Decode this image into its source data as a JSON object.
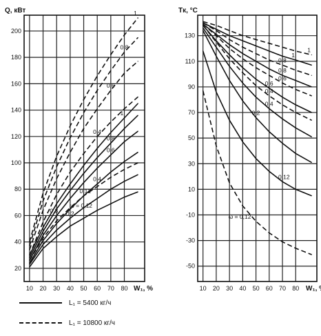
{
  "chart_data": [
    {
      "type": "line",
      "ylabel": "Q, кВт",
      "xlabel": "W₁, %",
      "x_ticks": [
        "10",
        "20",
        "30",
        "40",
        "50",
        "60",
        "70",
        "80"
      ],
      "y_ticks": [
        "20",
        "40",
        "60",
        "80",
        "100",
        "120",
        "140",
        "160",
        "180",
        "200"
      ],
      "xlim": [
        6,
        95
      ],
      "ylim": [
        10,
        212
      ],
      "grid": true,
      "series": [
        {
          "name": "1",
          "style": "dashed",
          "x": [
            10,
            20,
            30,
            40,
            50,
            60,
            70,
            80,
            90
          ],
          "y": [
            40,
            77,
            105,
            128,
            148,
            166,
            182,
            197,
            210
          ],
          "label": "1"
        },
        {
          "name": "0,8",
          "style": "dashed",
          "x": [
            10,
            20,
            30,
            40,
            50,
            60,
            70,
            80,
            90
          ],
          "y": [
            37,
            71,
            97,
            119,
            138,
            155,
            170,
            184,
            195
          ],
          "label": "0,8"
        },
        {
          "name": "0,6",
          "style": "dashed",
          "x": [
            10,
            20,
            30,
            40,
            50,
            60,
            70,
            80,
            90
          ],
          "y": [
            34,
            64,
            88,
            108,
            126,
            141,
            155,
            168,
            177
          ],
          "label": "0,6"
        },
        {
          "name": "0,4",
          "style": "dashed",
          "x": [
            10,
            20,
            30,
            40,
            50,
            60,
            70,
            80,
            90
          ],
          "y": [
            30,
            55,
            76,
            93,
            107,
            120,
            131,
            141,
            150
          ],
          "label": "0,4"
        },
        {
          "name": "0,12",
          "style": "dashed",
          "x": [
            10,
            20,
            30,
            40,
            50,
            60,
            70,
            80,
            90
          ],
          "y": [
            26,
            43,
            56,
            66,
            75,
            82,
            89,
            95,
            100
          ],
          "label": "0,12"
        },
        {
          "name": "1",
          "style": "solid",
          "x": [
            10,
            20,
            30,
            40,
            50,
            60,
            70,
            80,
            90
          ],
          "y": [
            30,
            51,
            69,
            84,
            98,
            111,
            123,
            134,
            145
          ],
          "label": "1"
        },
        {
          "name": "0,8",
          "style": "solid",
          "x": [
            10,
            20,
            30,
            40,
            50,
            60,
            70,
            80,
            90
          ],
          "y": [
            28,
            48,
            65,
            79,
            92,
            104,
            115,
            126,
            136
          ],
          "label": "0,8"
        },
        {
          "name": "0,6",
          "style": "solid",
          "x": [
            10,
            20,
            30,
            40,
            50,
            60,
            70,
            80,
            90
          ],
          "y": [
            26,
            45,
            60,
            73,
            85,
            96,
            106,
            116,
            124
          ],
          "label": "0,6"
        },
        {
          "name": "0,4",
          "style": "solid",
          "x": [
            10,
            20,
            30,
            40,
            50,
            60,
            70,
            80,
            90
          ],
          "y": [
            24,
            41,
            54,
            65,
            75,
            84,
            93,
            101,
            108
          ],
          "label": "0,4"
        },
        {
          "name": "0,2",
          "style": "solid",
          "x": [
            10,
            20,
            30,
            40,
            50,
            60,
            70,
            80,
            90
          ],
          "y": [
            23,
            38,
            49,
            58,
            66,
            73,
            80,
            86,
            91
          ],
          "label": "0,2"
        },
        {
          "name": "0,12",
          "style": "solid",
          "x": [
            10,
            20,
            30,
            40,
            50,
            60,
            70,
            80,
            90
          ],
          "y": [
            21,
            35,
            44,
            52,
            58,
            64,
            69,
            74,
            78
          ],
          "label": "ω = 0,12"
        }
      ],
      "annotations": [
        "0,3"
      ]
    },
    {
      "type": "line",
      "ylabel": "Tк, °C",
      "xlabel": "W₁, %",
      "x_ticks": [
        "10",
        "20",
        "30",
        "40",
        "50",
        "60",
        "70",
        "80"
      ],
      "y_ticks": [
        "-50",
        "-30",
        "-10",
        "10",
        "30",
        "50",
        "70",
        "90",
        "110",
        "130"
      ],
      "xlim": [
        6,
        96
      ],
      "ylim": [
        -62,
        146
      ],
      "grid": true,
      "series": [
        {
          "name": "1",
          "style": "dashed",
          "x": [
            10,
            20,
            30,
            40,
            50,
            60,
            70,
            80,
            92
          ],
          "y": [
            141,
            138,
            134,
            130,
            127,
            124,
            121,
            118,
            115
          ],
          "label": "1"
        },
        {
          "name": "0,8",
          "style": "dashed",
          "x": [
            10,
            20,
            30,
            40,
            50,
            60,
            70,
            80,
            92
          ],
          "y": [
            140,
            134,
            127,
            121,
            116,
            111,
            107,
            103,
            99
          ],
          "label": "0,8"
        },
        {
          "name": "0,6",
          "style": "dashed",
          "x": [
            10,
            20,
            30,
            40,
            50,
            60,
            70,
            80,
            92
          ],
          "y": [
            139,
            130,
            120,
            112,
            105,
            99,
            93,
            88,
            83
          ],
          "label": "0,6"
        },
        {
          "name": "0,4",
          "style": "dashed",
          "x": [
            10,
            20,
            30,
            40,
            50,
            60,
            70,
            80,
            92
          ],
          "y": [
            138,
            125,
            112,
            101,
            91,
            83,
            76,
            70,
            64
          ],
          "label": "0,4"
        },
        {
          "name": "0,12",
          "style": "dashed",
          "x": [
            10,
            20,
            30,
            40,
            50,
            60,
            70,
            80,
            92
          ],
          "y": [
            87,
            44,
            15,
            -3,
            -15,
            -24,
            -31,
            -36,
            -41
          ],
          "label": "ω = 0,12"
        },
        {
          "name": "1",
          "style": "solid",
          "x": [
            10,
            20,
            30,
            40,
            50,
            60,
            70,
            80,
            92
          ],
          "y": [
            140,
            135,
            130,
            126,
            122,
            118,
            114,
            111,
            107
          ],
          "label": "1"
        },
        {
          "name": "0,8",
          "style": "solid",
          "x": [
            10,
            20,
            30,
            40,
            50,
            60,
            70,
            80,
            92
          ],
          "y": [
            139,
            131,
            123,
            116,
            110,
            104,
            99,
            95,
            90
          ],
          "label": "0,8"
        },
        {
          "name": "0,6",
          "style": "solid",
          "x": [
            10,
            20,
            30,
            40,
            50,
            60,
            70,
            80,
            92
          ],
          "y": [
            138,
            126,
            115,
            105,
            96,
            89,
            82,
            76,
            70
          ],
          "label": "0,6"
        },
        {
          "name": "0,4",
          "style": "solid",
          "x": [
            10,
            20,
            30,
            40,
            50,
            60,
            70,
            80,
            92
          ],
          "y": [
            136,
            121,
            106,
            93,
            82,
            73,
            65,
            58,
            51
          ],
          "label": "0,4"
        },
        {
          "name": "0,2",
          "style": "solid",
          "x": [
            10,
            20,
            30,
            40,
            50,
            60,
            70,
            80,
            92
          ],
          "y": [
            134,
            114,
            95,
            79,
            66,
            55,
            46,
            38,
            31
          ],
          "label": "0,2"
        },
        {
          "name": "0,12",
          "style": "solid",
          "x": [
            10,
            20,
            30,
            40,
            50,
            60,
            70,
            80,
            92
          ],
          "y": [
            118,
            86,
            64,
            47,
            34,
            24,
            16,
            10,
            5
          ],
          "label": "0,12"
        }
      ]
    }
  ],
  "legend": {
    "solid": "L₁ = 5400 кг/ч",
    "dashed": "L₁ = 10800 кг/ч"
  }
}
